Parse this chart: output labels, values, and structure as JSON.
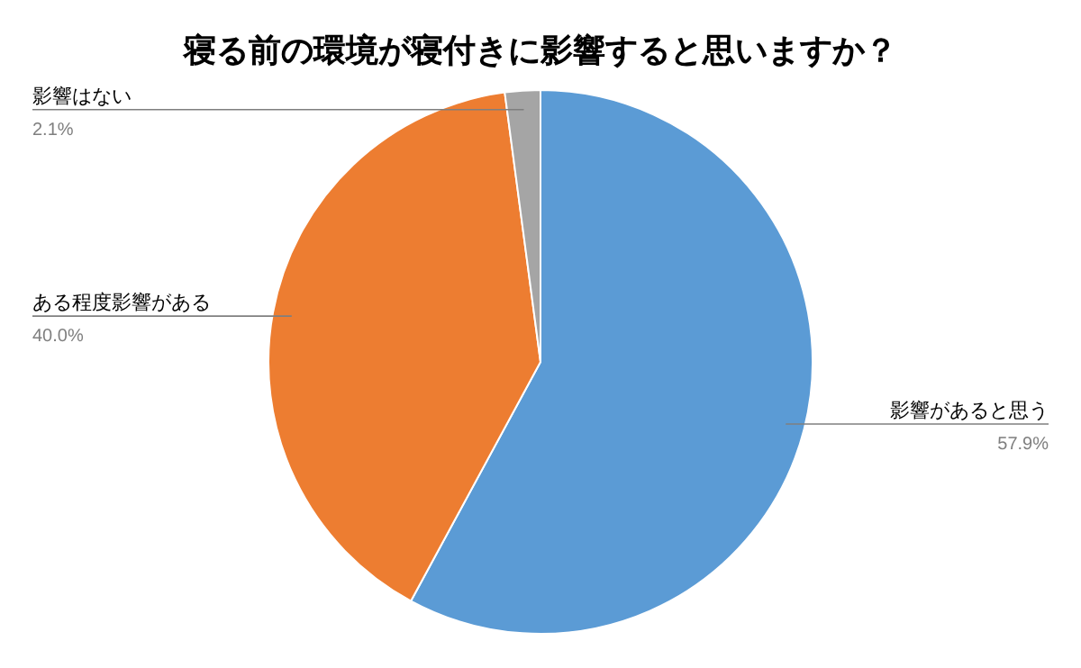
{
  "chart_data": {
    "type": "pie",
    "title": "寝る前の環境が寝付きに影響すると思いますか？",
    "categories": [
      "影響があると思う",
      "ある程度影響がある",
      "影響はない"
    ],
    "values": [
      57.9,
      40.0,
      2.1
    ],
    "colors": [
      "#5b9bd5",
      "#ed7d31",
      "#a5a5a5"
    ],
    "value_labels": [
      "57.9%",
      "40.0%",
      "2.1%"
    ]
  }
}
